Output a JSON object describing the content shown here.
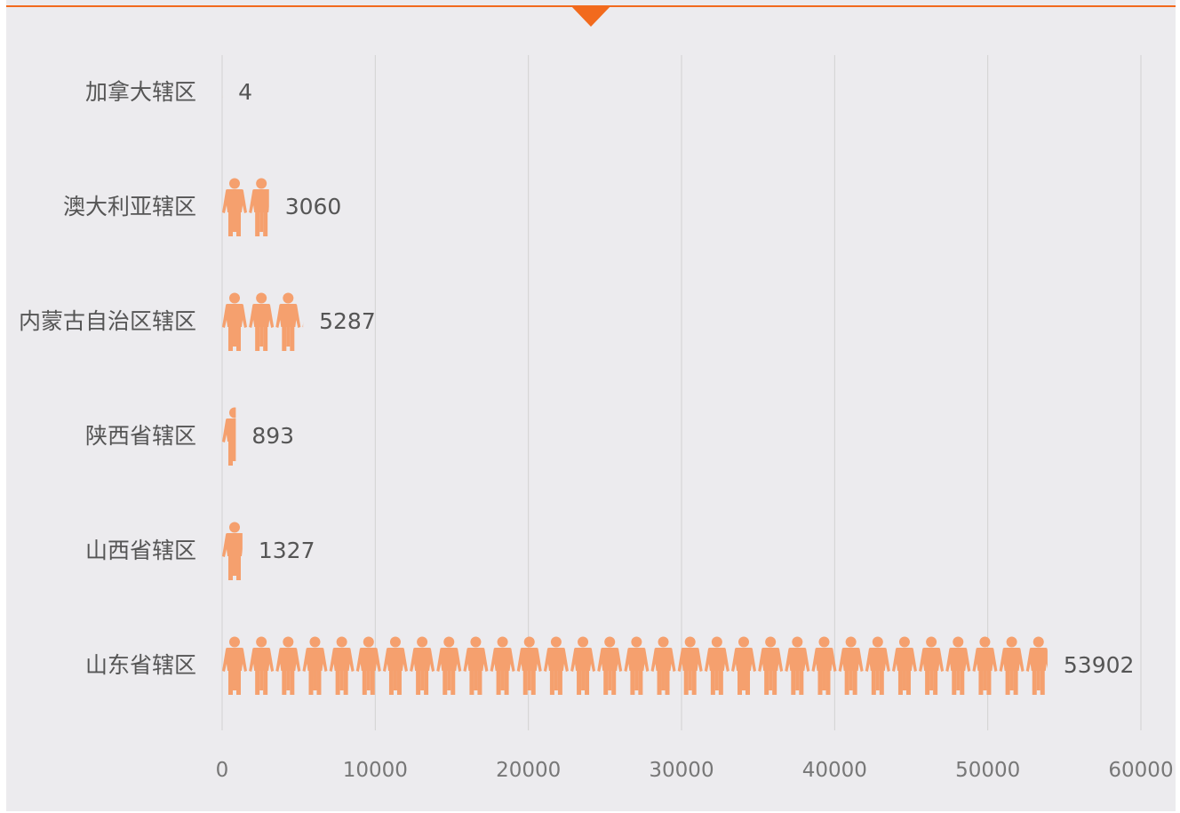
{
  "chart_data": {
    "type": "bar",
    "orientation": "horizontal",
    "style": "pictograph",
    "categories": [
      "加拿大辖区",
      "澳大利亚辖区",
      "内蒙古自治区辖区",
      "陕西省辖区",
      "山西省辖区",
      "山东省辖区"
    ],
    "values": [
      4,
      3060,
      5287,
      893,
      1327,
      53902
    ],
    "value_labels": [
      "4",
      "3060",
      "5287",
      "893",
      "1327",
      "53902"
    ],
    "xlim": [
      0,
      60000
    ],
    "x_ticks": [
      0,
      10000,
      20000,
      30000,
      40000,
      50000,
      60000
    ],
    "x_tick_labels": [
      "0",
      "10000",
      "20000",
      "30000",
      "40000",
      "50000",
      "60000"
    ],
    "units_per_icon": 1750,
    "grid": "vertical",
    "bar_color": "#f5a06e",
    "accent_color": "#f26a1d",
    "background_color": "#ecebee"
  }
}
